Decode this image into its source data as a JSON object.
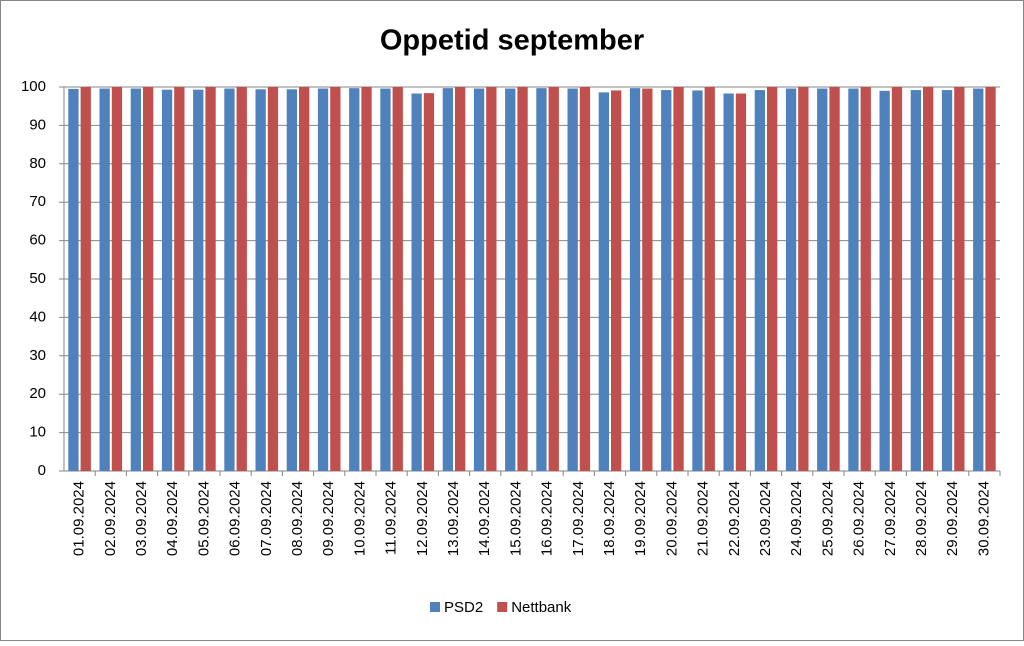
{
  "chart_data": {
    "type": "bar",
    "title": "Oppetid september",
    "categories": [
      "01.09.2024",
      "02.09.2024",
      "03.09.2024",
      "04.09.2024",
      "05.09.2024",
      "06.09.2024",
      "07.09.2024",
      "08.09.2024",
      "09.09.2024",
      "10.09.2024",
      "11.09.2024",
      "12.09.2024",
      "13.09.2024",
      "14.09.2024",
      "15.09.2024",
      "16.09.2024",
      "17.09.2024",
      "18.09.2024",
      "19.09.2024",
      "20.09.2024",
      "21.09.2024",
      "22.09.2024",
      "23.09.2024",
      "24.09.2024",
      "25.09.2024",
      "26.09.2024",
      "27.09.2024",
      "28.09.2024",
      "29.09.2024",
      "30.09.2024"
    ],
    "series": [
      {
        "name": "PSD2",
        "color": "#4f81bd",
        "values": [
          99.5,
          99.6,
          99.6,
          99.3,
          99.3,
          99.6,
          99.4,
          99.4,
          99.6,
          99.7,
          99.6,
          98.3,
          99.7,
          99.6,
          99.6,
          99.7,
          99.6,
          98.6,
          99.7,
          99.2,
          99.1,
          98.3,
          99.2,
          99.6,
          99.6,
          99.6,
          99.0,
          99.2,
          99.2,
          99.6
        ]
      },
      {
        "name": "Nettbank",
        "color": "#c0504d",
        "values": [
          100,
          100,
          100,
          100,
          100,
          100,
          100,
          100,
          100,
          100,
          100,
          98.4,
          100,
          100,
          100,
          100,
          100,
          99.1,
          99.6,
          100,
          100,
          98.3,
          100,
          100,
          100,
          100,
          100,
          100,
          100,
          100
        ]
      }
    ],
    "ylim": [
      0,
      100
    ],
    "yticks": [
      0,
      10,
      20,
      30,
      40,
      50,
      60,
      70,
      80,
      90,
      100
    ],
    "grid": true,
    "legend": "bottom"
  }
}
